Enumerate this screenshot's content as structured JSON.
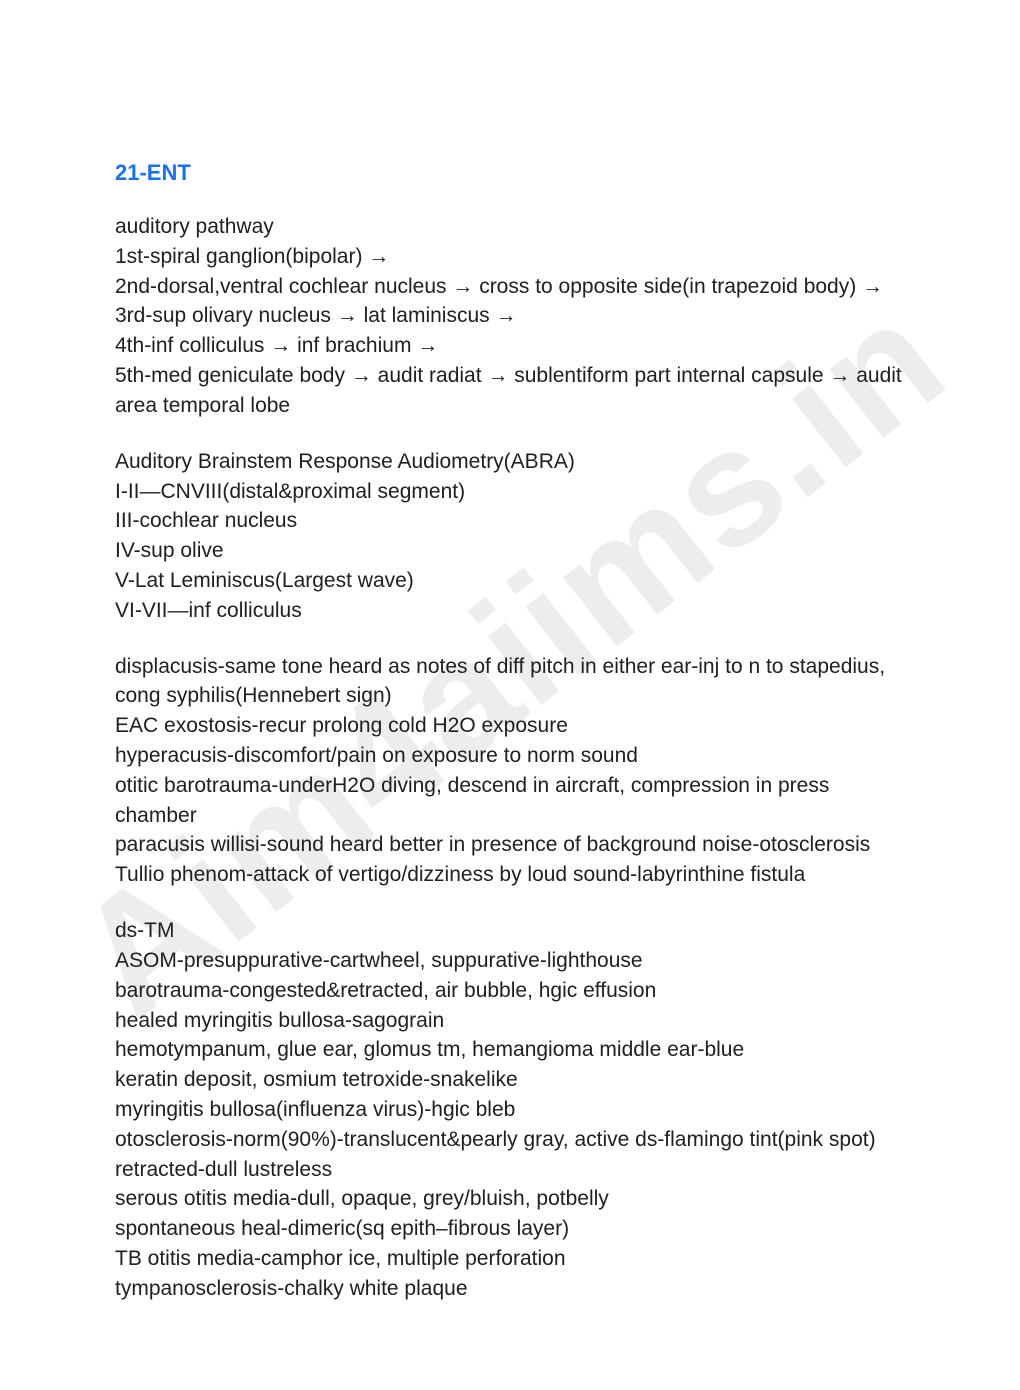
{
  "watermark": "Aim4aiims.in",
  "title": "21-ENT",
  "blocks": [
    {
      "lines": [
        "auditory pathway",
        " 1st-spiral ganglion(bipolar) →",
        " 2nd-dorsal,ventral cochlear nucleus → cross to opposite side(in trapezoid body) →",
        " 3rd-sup olivary nucleus → lat laminiscus →",
        " 4th-inf colliculus → inf brachium →",
        " 5th-med geniculate body → audit radiat → sublentiform part internal capsule → audit area temporal lobe"
      ]
    },
    {
      "lines": [
        "Auditory Brainstem Response Audiometry(ABRA)",
        " I-II—CNVIII(distal&proximal segment)",
        " III-cochlear nucleus",
        " IV-sup olive",
        " V-Lat Leminiscus(Largest wave)",
        " VI-VII—inf colliculus"
      ]
    },
    {
      "lines": [
        " displacusis-same tone heard as notes of diff pitch in either ear-inj to n to stapedius, cong syphilis(Hennebert sign)",
        " EAC exostosis-recur prolong cold H2O exposure",
        " hyperacusis-discomfort/pain on exposure to norm sound",
        " otitic barotrauma-underH2O diving, descend in aircraft, compression in press chamber",
        " paracusis willisi-sound heard better in presence of background noise-otosclerosis",
        " Tullio phenom-attack of vertigo/dizziness by loud sound-labyrinthine fistula"
      ]
    },
    {
      "lines": [
        "ds-TM",
        " ASOM-presuppurative-cartwheel, suppurative-lighthouse",
        " barotrauma-congested&retracted, air bubble, hgic effusion",
        " healed myringitis bullosa-sagograin",
        " hemotympanum, glue ear, glomus tm, hemangioma middle ear-blue",
        " keratin deposit, osmium tetroxide-snakelike",
        " myringitis bullosa(influenza virus)-hgic bleb",
        " otosclerosis-norm(90%)-translucent&pearly gray, active ds-flamingo tint(pink spot)",
        " retracted-dull lustreless",
        " serous otitis media-dull, opaque, grey/bluish, potbelly",
        " spontaneous heal-dimeric(sq epith–fibrous layer)",
        " TB otitis media-camphor ice, multiple perforation",
        " tympanosclerosis-chalky white plaque"
      ]
    }
  ]
}
